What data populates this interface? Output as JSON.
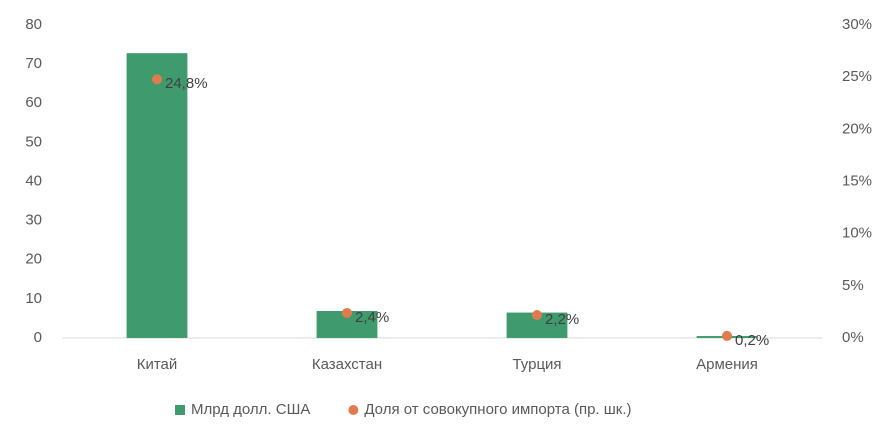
{
  "chart_data": {
    "type": "bar",
    "categories": [
      "Китай",
      "Казахстан",
      "Турция",
      "Армения"
    ],
    "series": [
      {
        "name": "Млрд долл. США",
        "color": "#3f9b6e",
        "values": [
          72.8,
          6.9,
          6.5,
          0.5
        ]
      },
      {
        "name": "Доля от совокупного импорта (пр. шк.)",
        "color": "#e07b4f",
        "axis": "y2",
        "type": "scatter",
        "values": [
          24.8,
          2.4,
          2.2,
          0.2
        ],
        "value_labels": [
          "24,8%",
          "2,4%",
          "2,2%",
          "0,2%"
        ]
      }
    ],
    "ylim": [
      0,
      80
    ],
    "yticks": [
      0,
      10,
      20,
      30,
      40,
      50,
      60,
      70,
      80
    ],
    "y2lim": [
      0,
      30
    ],
    "y2ticks": [
      {
        "value": 0,
        "label": "0%"
      },
      {
        "value": 5,
        "label": "5%"
      },
      {
        "value": 10,
        "label": "10%"
      },
      {
        "value": 15,
        "label": "15%"
      },
      {
        "value": 20,
        "label": "20%"
      },
      {
        "value": 25,
        "label": "25%"
      },
      {
        "value": 30,
        "label": "30%"
      }
    ],
    "grid": false,
    "legend": "bottom"
  }
}
